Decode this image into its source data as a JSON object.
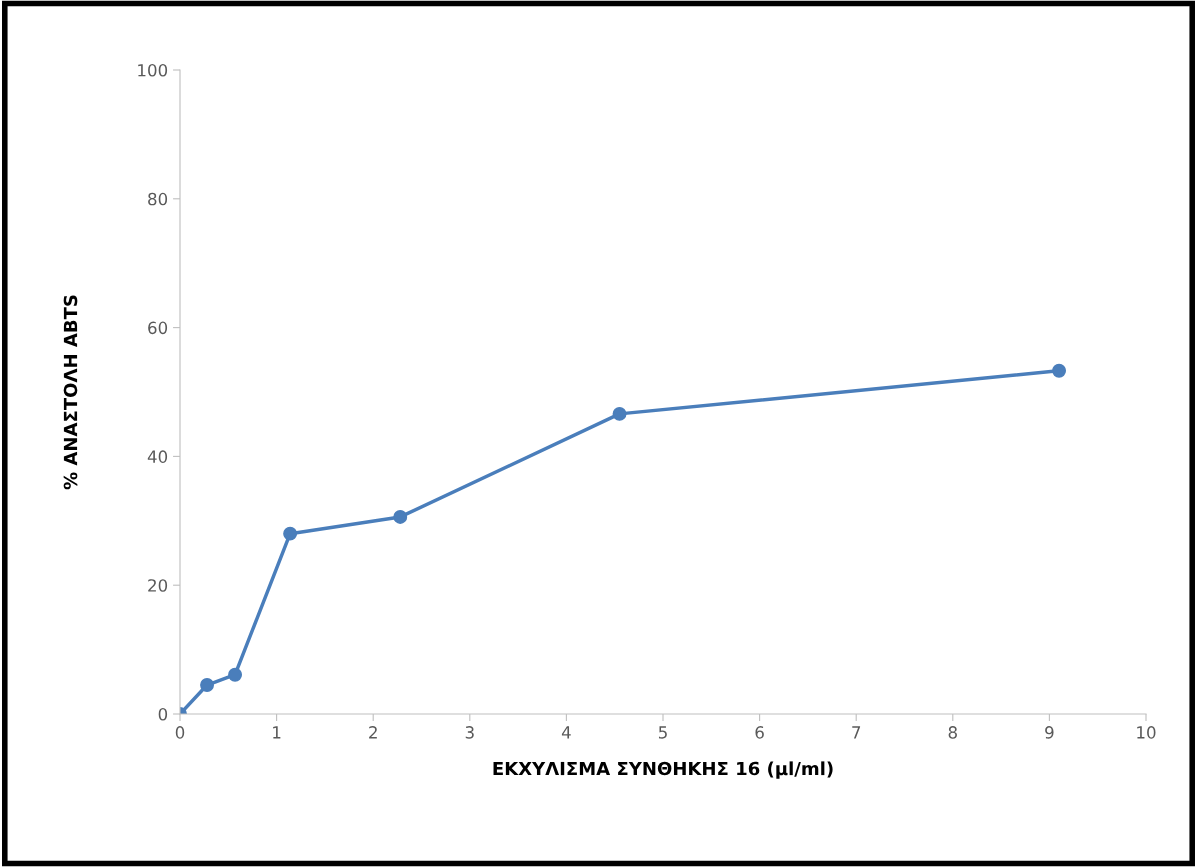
{
  "chart_data": {
    "type": "line",
    "xlabel": "ΕΚΧΥΛΙΣΜΑ ΣΥΝΘΗΚΗΣ 16 (μl/ml)",
    "ylabel": "% ΑΝΑΣΤΟΛΗ ABTS",
    "x": [
      0,
      0.28,
      0.57,
      1.14,
      2.28,
      4.55,
      9.1
    ],
    "series": [
      {
        "color": "#4a7ebb",
        "values": [
          0,
          4.5,
          6.1,
          28.0,
          30.6,
          46.6,
          53.3
        ]
      }
    ],
    "xlim": [
      0,
      10
    ],
    "xticks": [
      0,
      1,
      2,
      3,
      4,
      5,
      6,
      7,
      8,
      9,
      10
    ],
    "ylim": [
      0,
      100
    ],
    "yticks": [
      0,
      20,
      40,
      60,
      80,
      100
    ],
    "grid": false,
    "marker": "circle",
    "line_style": "solid"
  }
}
